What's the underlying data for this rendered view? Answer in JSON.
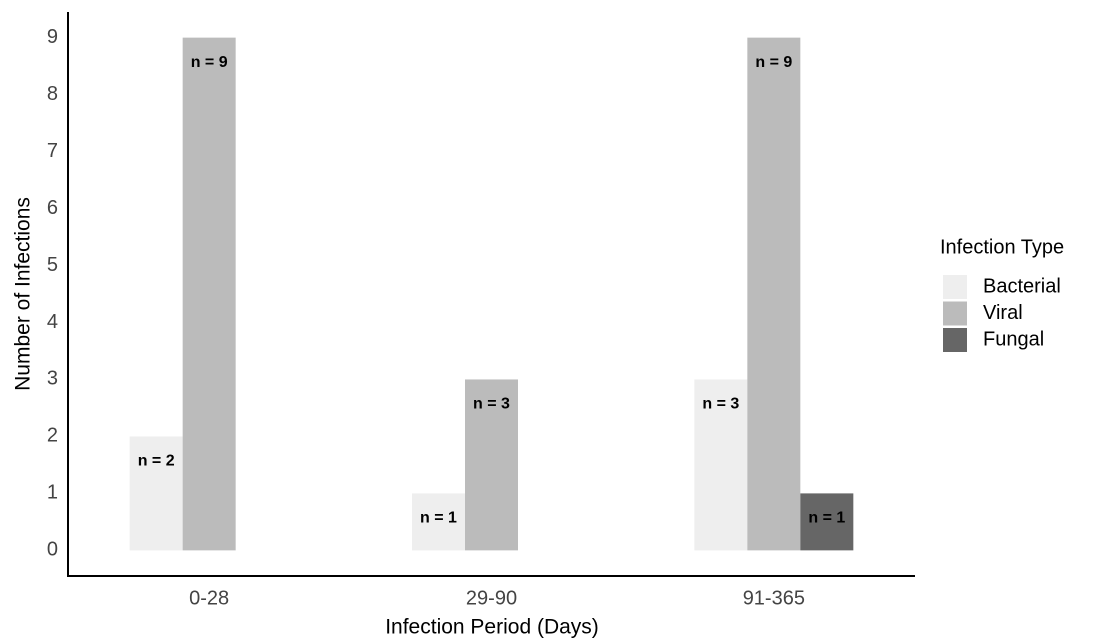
{
  "chart_data": {
    "type": "bar",
    "x_label": "Infection Period (Days)",
    "y_label": "Number of Infections",
    "categories": [
      "0-28",
      "29-90",
      "91-365"
    ],
    "series": [
      {
        "name": "Bacterial",
        "color": "#eeeeee",
        "values": [
          2,
          1,
          3
        ],
        "value_labels": [
          "n = 2",
          "n = 1",
          "n = 3"
        ]
      },
      {
        "name": "Viral",
        "color": "#bbbbbb",
        "values": [
          9,
          3,
          9
        ],
        "value_labels": [
          "n = 9",
          "n = 3",
          "n = 9"
        ]
      },
      {
        "name": "Fungal",
        "color": "#666666",
        "values": [
          null,
          null,
          1
        ],
        "value_labels": [
          null,
          null,
          "n = 1"
        ]
      }
    ],
    "legend_title": "Infection Type",
    "legend_position": "right",
    "ylim": [
      -0.45,
      9.45
    ],
    "yticks": [
      0,
      1,
      2,
      3,
      4,
      5,
      6,
      7,
      8,
      9
    ],
    "grid": false
  }
}
